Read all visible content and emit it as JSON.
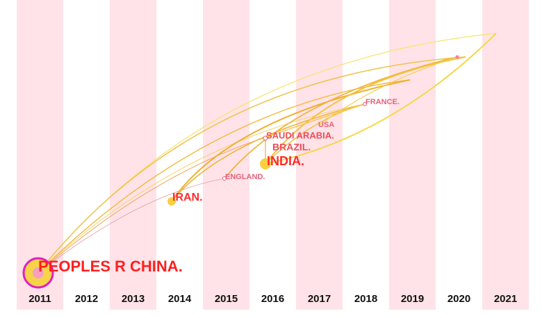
{
  "timeline": {
    "years": [
      "2011",
      "2012",
      "2013",
      "2014",
      "2015",
      "2016",
      "2017",
      "2018",
      "2019",
      "2020",
      "2021"
    ]
  },
  "nodes": [
    {
      "label": "PEOPLES R CHINA."
    },
    {
      "label": "IRAN."
    },
    {
      "label": "ENGLAND."
    },
    {
      "label": "INDIA."
    },
    {
      "label": "BRAZIL."
    },
    {
      "label": "SAUDI ARABIA."
    },
    {
      "label": "USA"
    },
    {
      "label": "FRANCE."
    }
  ]
}
